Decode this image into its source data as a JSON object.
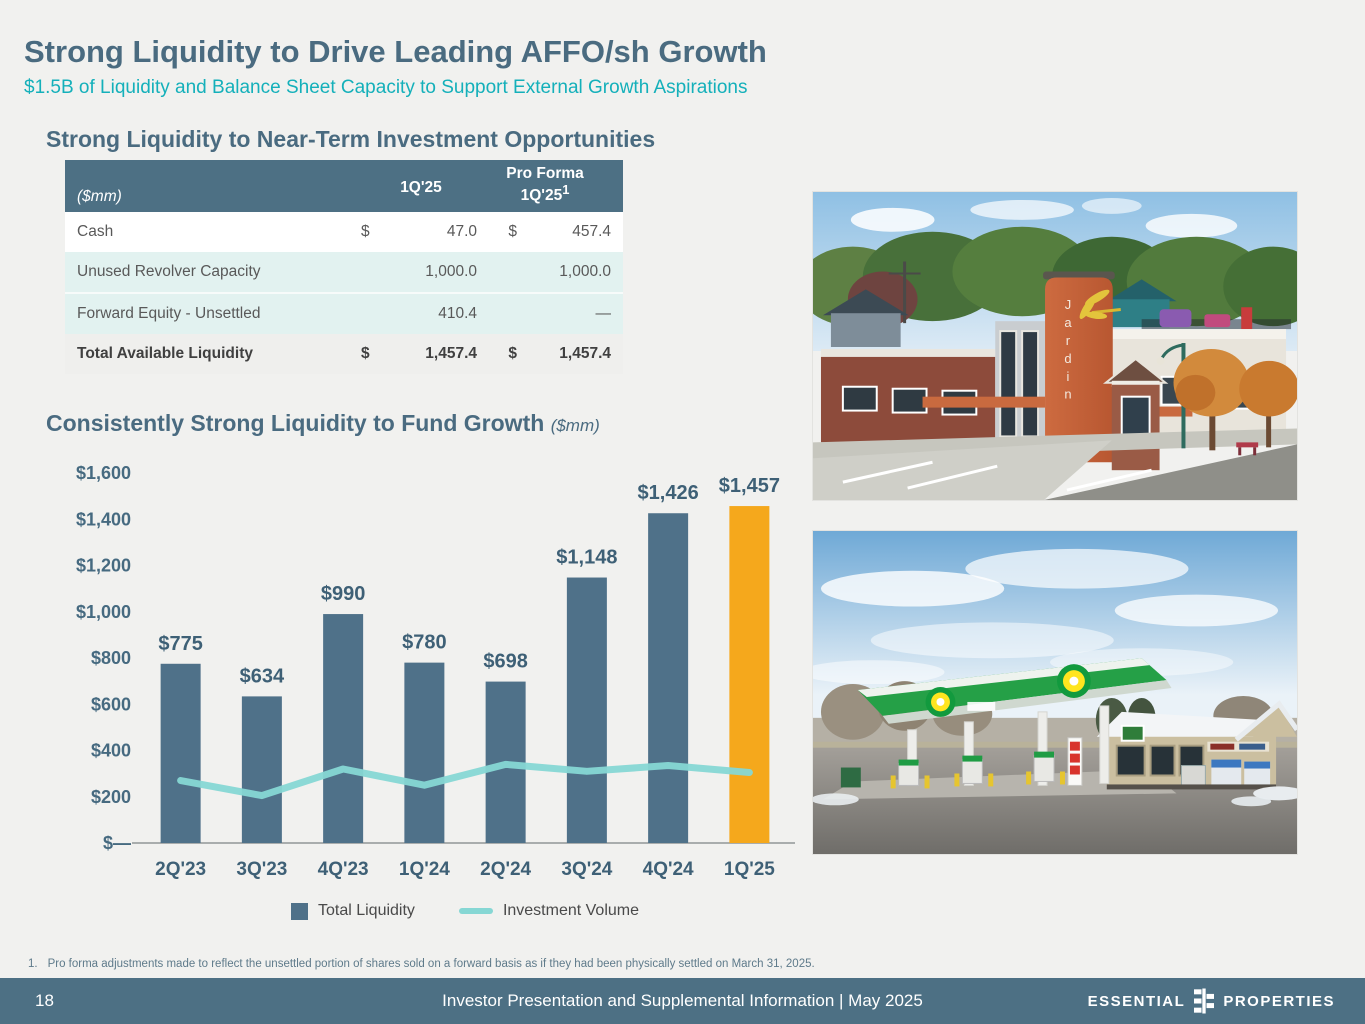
{
  "colors": {
    "slate": "#4D7084",
    "heading_text": "#4A6B80",
    "teal_accent": "#14B0BA",
    "bar_blue": "#4F7189",
    "bar_highlight_orange": "#F5A81C",
    "line_teal": "#86D7D4",
    "row_teal_bg": "#E2F2F0",
    "total_row_bg": "#EFEFED",
    "background": "#F1F1EF"
  },
  "header": {
    "title": "Strong Liquidity to Drive Leading AFFO/sh Growth",
    "subtitle": "$1.5B of Liquidity and Balance Sheet Capacity to Support External Growth Aspirations"
  },
  "liquidity_table": {
    "heading": "Strong Liquidity to Near-Term Investment Opportunities",
    "unit_header": "($mm)",
    "col1": "1Q'25",
    "col2_line1": "Pro Forma",
    "col2_line2": "1Q'25",
    "col2_sup": "1",
    "rows": [
      {
        "label": "Cash",
        "cur1": "$",
        "val1": "47.0",
        "cur2": "$",
        "val2": "457.4"
      },
      {
        "label": "Unused Revolver Capacity",
        "cur1": "",
        "val1": "1,000.0",
        "cur2": "",
        "val2": "1,000.0"
      },
      {
        "label": "Forward Equity - Unsettled",
        "cur1": "",
        "val1": "410.4",
        "cur2": "",
        "val2": "—"
      }
    ],
    "total_row": {
      "label": "Total Available Liquidity",
      "cur1": "$",
      "val1": "1,457.4",
      "cur2": "$",
      "val2": "1,457.4"
    }
  },
  "chart_section": {
    "heading": "Consistently Strong Liquidity to Fund Growth",
    "unit": "($mm)"
  },
  "chart_data": {
    "type": "bar",
    "title": "Consistently Strong Liquidity to Fund Growth",
    "unit": "($mm)",
    "categories": [
      "2Q'23",
      "3Q'23",
      "4Q'23",
      "1Q'24",
      "2Q'24",
      "3Q'24",
      "4Q'24",
      "1Q'25"
    ],
    "series": [
      {
        "name": "Total Liquidity",
        "type": "bar",
        "values": [
          775,
          634,
          990,
          780,
          698,
          1148,
          1426,
          1457
        ],
        "labels": [
          "$775",
          "$634",
          "$990",
          "$780",
          "$698",
          "$1,148",
          "$1,426",
          "$1,457"
        ],
        "color": "#4F7189",
        "highlight_index": 7,
        "highlight_color": "#F5A81C"
      },
      {
        "name": "Investment Volume",
        "type": "line",
        "values": [
          270,
          205,
          320,
          250,
          340,
          310,
          335,
          305
        ],
        "color": "#86D7D4"
      }
    ],
    "ylim": [
      0,
      1600
    ],
    "ytick_step": 200,
    "ytick_labels": [
      "$—",
      "$200",
      "$400",
      "$600",
      "$800",
      "$1,000",
      "$1,200",
      "$1,400",
      "$1,600"
    ],
    "legend_position": "bottom",
    "grid": false
  },
  "photos": {
    "top_alt": "Aerial view of Jardin childcare building with orange tower and rooftop playground",
    "bottom_alt": "bp gas station with green canopy and convenience store in winter"
  },
  "footnote": {
    "marker": "1.",
    "text": "Pro forma adjustments made to reflect the unsettled portion of shares sold on a forward basis as if they had been physically settled on March 31, 2025."
  },
  "footer": {
    "page_number": "18",
    "center_text": "Investor Presentation and Supplemental Information | May 2025",
    "brand_left": "ESSENTIAL",
    "brand_right": "PROPERTIES"
  }
}
